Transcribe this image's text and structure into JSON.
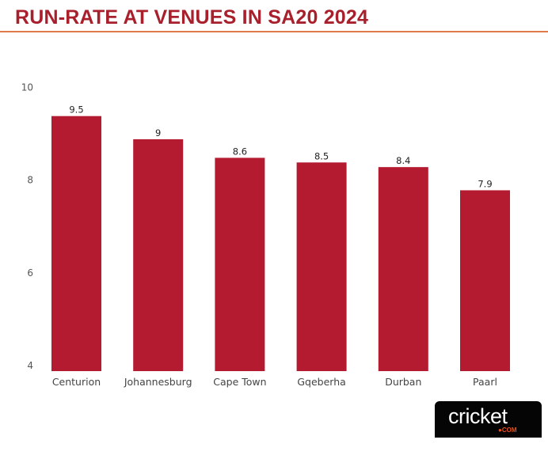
{
  "title": "RUN-RATE AT VENUES IN SA20 2024",
  "colors": {
    "title": "#a8202c",
    "rule": "#e07b4a",
    "bar": "#b51b30"
  },
  "logo": {
    "text": "cricket",
    "suffix": "●COM"
  },
  "chart_data": {
    "type": "bar",
    "title": "RUN-RATE AT VENUES IN SA20 2024",
    "xlabel": "",
    "ylabel": "",
    "categories": [
      "Centurion",
      "Johannesburg",
      "Cape Town",
      "Gqeberha",
      "Durban",
      "Paarl"
    ],
    "values": [
      9.5,
      9,
      8.6,
      8.5,
      8.4,
      7.9
    ],
    "data_labels": [
      "9.5",
      "9",
      "8.6",
      "8.5",
      "8.4",
      "7.9"
    ],
    "ylim": [
      4,
      10
    ],
    "yticks": [
      4,
      6,
      8,
      10
    ],
    "ytick_labels": [
      "4",
      "6",
      "8",
      "10"
    ],
    "grid": false,
    "legend": "none"
  }
}
